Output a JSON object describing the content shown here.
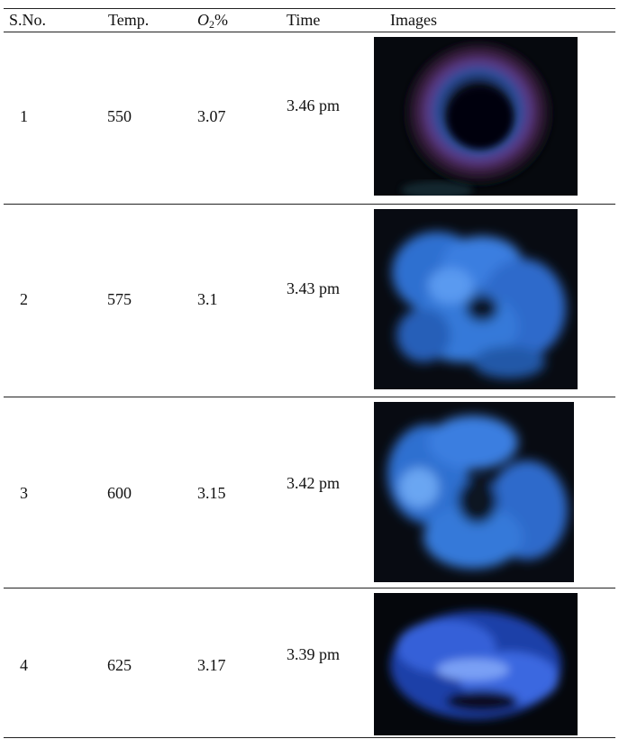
{
  "table": {
    "headers": {
      "sno": "S.No.",
      "temp": "Temp.",
      "o2_main": "O",
      "o2_sub": "2",
      "o2_pct": "%",
      "time": "Time",
      "images": "Images"
    },
    "rows": [
      {
        "sno": "1",
        "temp": "550",
        "o2": "3.07",
        "time": "3.46 pm",
        "image_icon": "flame-image-ring"
      },
      {
        "sno": "2",
        "temp": "575",
        "o2": "3.1",
        "time": "3.43 pm",
        "image_icon": "flame-image-blue-cloud"
      },
      {
        "sno": "3",
        "temp": "600",
        "o2": "3.15",
        "time": "3.42 pm",
        "image_icon": "flame-image-blue-cloud"
      },
      {
        "sno": "4",
        "temp": "625",
        "o2": "3.17",
        "time": "3.39 pm",
        "image_icon": "flame-image-blue-cloud"
      }
    ]
  },
  "colors": {
    "flame_blue": "#3f86e8",
    "flame_purple": "#7a3aa0",
    "background_dark": "#06090e"
  }
}
